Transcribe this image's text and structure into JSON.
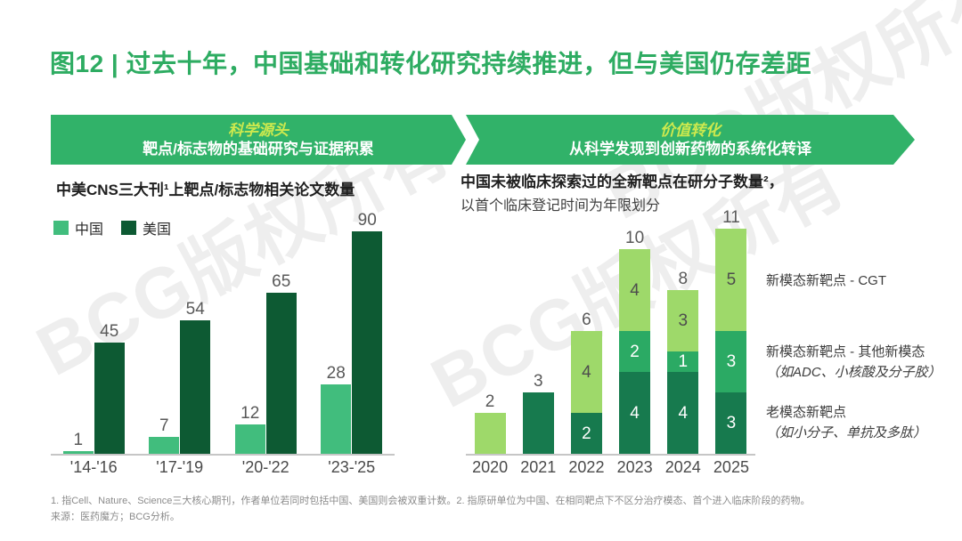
{
  "title": "图12 | 过去十年，中国基础和转化研究持续推进，但与美国仍存差距",
  "watermark": "BCG版权所有",
  "banners": [
    {
      "heading": "科学源头",
      "subheading": "靶点/标志物的基础研究与证据积累"
    },
    {
      "heading": "价值转化",
      "subheading": "从科学发现到创新药物的系统化转译"
    }
  ],
  "colors": {
    "title_green": "#2EAC62",
    "banner_green": "#31B269",
    "banner_heading_yellow": "#CDE94E",
    "china_green": "#41BD7D",
    "us_dark_green": "#0D5A33",
    "cgt_light_green": "#9ED96A",
    "other_mid_green": "#2BAA64",
    "old_dark_green": "#177A4E"
  },
  "chart_data": [
    {
      "type": "bar",
      "title": "中美CNS三大刊¹上靶点/标志物相关论文数量",
      "categories": [
        "'14-'16",
        "'17-'19",
        "'20-'22",
        "'23-'25"
      ],
      "series": [
        {
          "name": "中国",
          "color": "#41BD7D",
          "values": [
            1,
            7,
            12,
            28
          ]
        },
        {
          "name": "美国",
          "color": "#0D5A33",
          "values": [
            45,
            54,
            65,
            90
          ]
        }
      ],
      "ylim": [
        0,
        90
      ],
      "grid": false,
      "legend_position": "top-left",
      "value_labels": true
    },
    {
      "type": "stacked-bar",
      "title": "中国未被临床探索过的全新靶点在研分子数量²，",
      "subtitle": "以首个临床登记时间为年限划分",
      "categories": [
        "2020",
        "2021",
        "2022",
        "2023",
        "2024",
        "2025"
      ],
      "series": [
        {
          "name": "新模态新靶点 - CGT",
          "color": "#9ED96A",
          "label_color": "#4D4D4D",
          "values": [
            2,
            0,
            4,
            4,
            3,
            5
          ]
        },
        {
          "name": "新模态新靶点 - 其他新模态（如ADC、小核酸及分子胶）",
          "color": "#2BAA64",
          "label_color": "#FFFFFF",
          "values": [
            0,
            0,
            0,
            2,
            1,
            3
          ]
        },
        {
          "name": "老模态新靶点（如小分子、单抗及多肽）",
          "color": "#177A4E",
          "label_color": "#FFFFFF",
          "values": [
            0,
            3,
            2,
            4,
            4,
            3
          ]
        }
      ],
      "totals": [
        2,
        3,
        6,
        10,
        8,
        11
      ],
      "ylim": [
        0,
        11
      ],
      "grid": false,
      "value_labels": true
    }
  ],
  "right_legend": [
    {
      "line1": "新模态新靶点 - CGT",
      "line2": ""
    },
    {
      "line1": "新模态新靶点 - 其他新模态",
      "line2": "（如ADC、小核酸及分子胶）"
    },
    {
      "line1": "老模态新靶点",
      "line2": "（如小分子、单抗及多肽）"
    }
  ],
  "footnote": "1. 指Cell、Nature、Science三大核心期刊，作者单位若同时包括中国、美国则会被双重计数。2. 指原研单位为中国、在相同靶点下不区分治疗模态、首个进入临床阶段的药物。",
  "source": "来源：医药魔方；BCG分析。"
}
